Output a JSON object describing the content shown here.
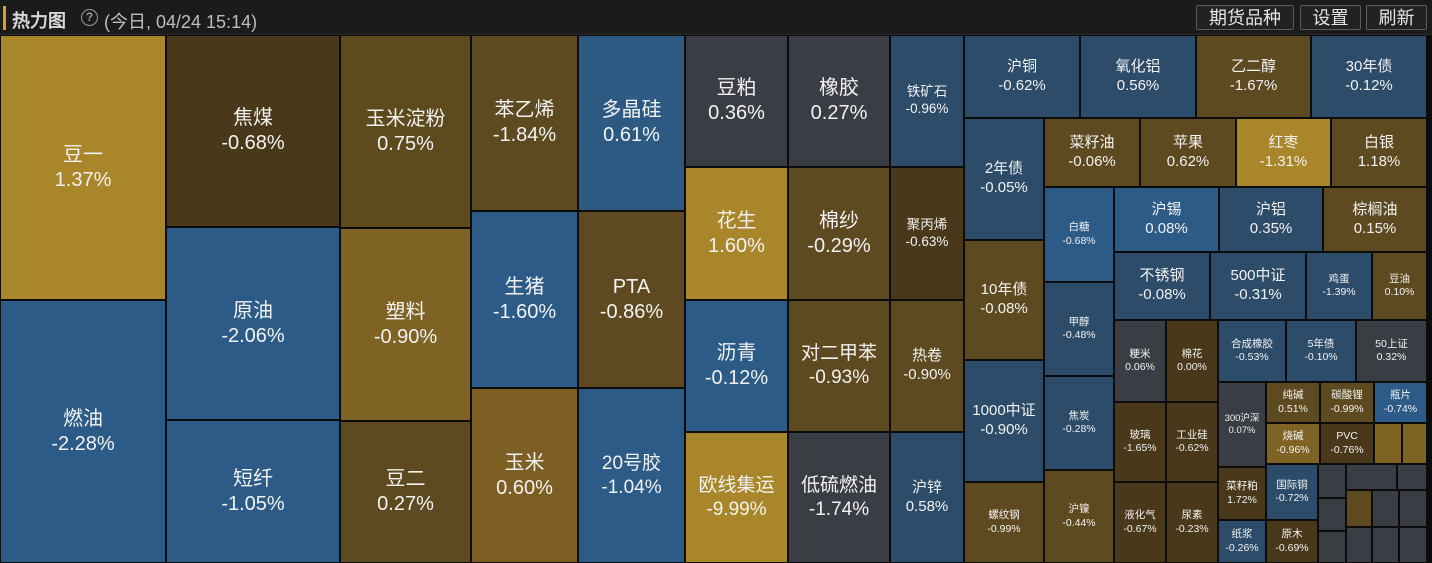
{
  "header": {
    "title": "热力图",
    "timestamp": "(今日, 04/24 15:14)",
    "buttons": [
      "期货品种",
      "设置",
      "刷新"
    ]
  },
  "colors": {
    "strong_up": "#a98629",
    "up": "#7e5f23",
    "mild_up": "#5c4a22",
    "flat": "#3a3e44",
    "mild_down": "#2c4c6a",
    "down": "#2b5b86",
    "strong_down": "#2a6298"
  },
  "heatmap": {
    "tiles": [
      {
        "name": "豆一",
        "pct": "1.37%",
        "color": "#a98629"
      },
      {
        "name": "燃油",
        "pct": "-2.28%",
        "color": "#2b5b86"
      },
      {
        "name": "焦煤",
        "pct": "-0.68%",
        "color": "#493819"
      },
      {
        "name": "原油",
        "pct": "-2.06%",
        "color": "#2b5b86"
      },
      {
        "name": "短纤",
        "pct": "-1.05%",
        "color": "#2b5b86"
      },
      {
        "name": "玉米淀粉",
        "pct": "0.75%",
        "color": "#5d4a1d"
      },
      {
        "name": "塑料",
        "pct": "-0.90%",
        "color": "#7e6324"
      },
      {
        "name": "豆二",
        "pct": "0.27%",
        "color": "#5e4a20"
      },
      {
        "name": "苯乙烯",
        "pct": "-1.84%",
        "color": "#5e4a20"
      },
      {
        "name": "生猪",
        "pct": "-1.60%",
        "color": "#2b5b86"
      },
      {
        "name": "玉米",
        "pct": "0.60%",
        "color": "#7e5f23"
      },
      {
        "name": "多晶硅",
        "pct": "0.61%",
        "color": "#2c5a83"
      },
      {
        "name": "PTA",
        "pct": "-0.86%",
        "color": "#5f4920"
      },
      {
        "name": "20号胶",
        "pct": "-1.04%",
        "color": "#2b5b86"
      },
      {
        "name": "豆粕",
        "pct": "0.36%",
        "color": "#3a3e44"
      },
      {
        "name": "花生",
        "pct": "1.60%",
        "color": "#a98629"
      },
      {
        "name": "沥青",
        "pct": "-0.12%",
        "color": "#2b5b86"
      },
      {
        "name": "欧线集运",
        "pct": "-9.99%",
        "color": "#a98629"
      },
      {
        "name": "橡胶",
        "pct": "0.27%",
        "color": "#3a3e44"
      },
      {
        "name": "棉纱",
        "pct": "-0.29%",
        "color": "#5e4a20"
      },
      {
        "name": "对二甲苯",
        "pct": "-0.93%",
        "color": "#5e4a20"
      },
      {
        "name": "低硫燃油",
        "pct": "-1.74%",
        "color": "#3a3e44"
      },
      {
        "name": "铁矿石",
        "pct": "-0.96%",
        "color": "#2c4c6a"
      },
      {
        "name": "聚丙烯",
        "pct": "-0.63%",
        "color": "#493819"
      },
      {
        "name": "热卷",
        "pct": "-0.90%",
        "color": "#5e4a20"
      },
      {
        "name": "沪锌",
        "pct": "0.58%",
        "color": "#2c4c6a"
      },
      {
        "name": "沪铜",
        "pct": "-0.62%",
        "color": "#2c4c6a"
      },
      {
        "name": "氧化铝",
        "pct": "0.56%",
        "color": "#2c4c6a"
      },
      {
        "name": "乙二醇",
        "pct": "-1.67%",
        "color": "#5e4a20"
      },
      {
        "name": "30年债",
        "pct": "-0.12%",
        "color": "#2c4c6a"
      },
      {
        "name": "2年债",
        "pct": "-0.05%",
        "color": "#2c4c6a"
      },
      {
        "name": "10年债",
        "pct": "-0.08%",
        "color": "#5e4a20"
      },
      {
        "name": "1000中证",
        "pct": "-0.90%",
        "color": "#2c4c6a"
      },
      {
        "name": "螺纹钢",
        "pct": "-0.99%",
        "color": "#5e4a20"
      },
      {
        "name": "菜籽油",
        "pct": "-0.06%",
        "color": "#5e4a20"
      },
      {
        "name": "苹果",
        "pct": "0.62%",
        "color": "#5e4a20"
      },
      {
        "name": "红枣",
        "pct": "-1.31%",
        "color": "#a98629"
      },
      {
        "name": "白银",
        "pct": "1.18%",
        "color": "#5e4a20"
      },
      {
        "name": "白糖",
        "pct": "-0.68%",
        "color": "#2b5b86"
      },
      {
        "name": "沪锡",
        "pct": "0.08%",
        "color": "#2b5b86"
      },
      {
        "name": "沪铝",
        "pct": "0.35%",
        "color": "#2c4c6a"
      },
      {
        "name": "棕榈油",
        "pct": "0.15%",
        "color": "#5e4a20"
      },
      {
        "name": "甲醇",
        "pct": "-0.48%",
        "color": "#2c4c6a"
      },
      {
        "name": "不锈钢",
        "pct": "-0.08%",
        "color": "#2c4c6a"
      },
      {
        "name": "500中证",
        "pct": "-0.31%",
        "color": "#2c4c6a"
      },
      {
        "name": "鸡蛋",
        "pct": "-1.39%",
        "color": "#2c4c6a"
      },
      {
        "name": "豆油",
        "pct": "0.10%",
        "color": "#5e4a20"
      },
      {
        "name": "焦炭",
        "pct": "-0.28%",
        "color": "#2c4c6a"
      },
      {
        "name": "沪镍",
        "pct": "-0.44%",
        "color": "#5e4a20"
      },
      {
        "name": "粳米",
        "pct": "0.06%",
        "color": "#3a3e44"
      },
      {
        "name": "棉花",
        "pct": "0.00%",
        "color": "#493819"
      },
      {
        "name": "合成橡胶",
        "pct": "-0.53%",
        "color": "#2c4c6a"
      },
      {
        "name": "5年债",
        "pct": "-0.10%",
        "color": "#2c4c6a"
      },
      {
        "name": "50上证",
        "pct": "0.32%",
        "color": "#3a3e44"
      },
      {
        "name": "玻璃",
        "pct": "-1.65%",
        "color": "#493819"
      },
      {
        "name": "工业硅",
        "pct": "-0.62%",
        "color": "#493819"
      },
      {
        "name": "300沪深",
        "pct": "0.07%",
        "color": "#3a3e44"
      },
      {
        "name": "纯碱",
        "pct": "0.51%",
        "color": "#5e4a20"
      },
      {
        "name": "碳酸锂",
        "pct": "-0.99%",
        "color": "#5e4a20"
      },
      {
        "name": "瓶片",
        "pct": "-0.74%",
        "color": "#2b5b86"
      },
      {
        "name": "烧碱",
        "pct": "-0.96%",
        "color": "#7e6324"
      },
      {
        "name": "PVC",
        "pct": "-0.76%",
        "color": "#493819"
      },
      {
        "name": "液化气",
        "pct": "-0.67%",
        "color": "#493819"
      },
      {
        "name": "尿素",
        "pct": "-0.23%",
        "color": "#493819"
      },
      {
        "name": "菜籽粕",
        "pct": "1.72%",
        "color": "#493819"
      },
      {
        "name": "国际铜",
        "pct": "-0.72%",
        "color": "#2c4c6a"
      },
      {
        "name": "纸浆",
        "pct": "-0.26%",
        "color": "#2c4c6a"
      },
      {
        "name": "原木",
        "pct": "-0.69%",
        "color": "#493819"
      }
    ]
  }
}
